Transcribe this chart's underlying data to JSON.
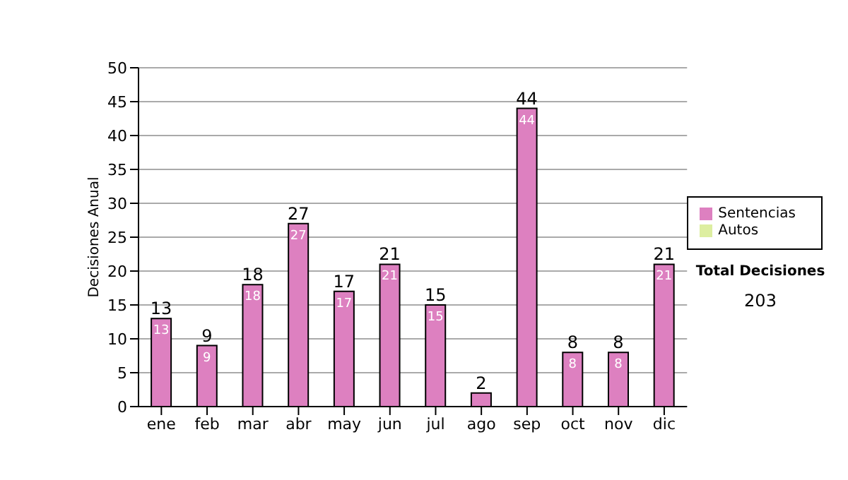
{
  "chart_data": {
    "type": "bar",
    "ylabel": "Decisiones Anual",
    "categories": [
      "ene",
      "feb",
      "mar",
      "abr",
      "may",
      "jun",
      "jul",
      "ago",
      "sep",
      "oct",
      "nov",
      "dic"
    ],
    "series": [
      {
        "name": "Sentencias",
        "color": "#dd80c0",
        "values": [
          13,
          9,
          18,
          27,
          17,
          21,
          15,
          2,
          44,
          8,
          8,
          21
        ],
        "value_labels": [
          "13",
          "9",
          "18",
          "27",
          "17",
          "21",
          "15",
          null,
          "44",
          "8",
          "8",
          "21"
        ]
      },
      {
        "name": "Autos",
        "color": "#ddeea0",
        "values": [
          0,
          0,
          0,
          0,
          0,
          0,
          0,
          0,
          0,
          0,
          0,
          0
        ]
      }
    ],
    "stacked": true,
    "totals": [
      "13",
      "9",
      "18",
      "27",
      "17",
      "21",
      "15",
      "2",
      "44",
      "8",
      "8",
      "21"
    ],
    "ylim": [
      0,
      50
    ],
    "yticks": [
      0,
      5,
      10,
      15,
      20,
      25,
      30,
      35,
      40,
      45,
      50
    ],
    "grid": "y",
    "legend": "right",
    "annotations": [
      "Total Decisiones",
      "203"
    ]
  }
}
